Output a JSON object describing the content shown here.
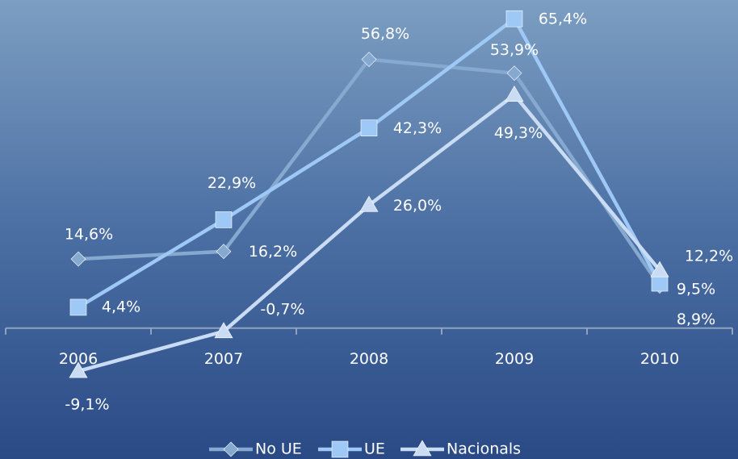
{
  "chart_data": {
    "type": "line",
    "categories": [
      "2006",
      "2007",
      "2008",
      "2009",
      "2010"
    ],
    "ylim": [
      -20,
      68
    ],
    "legend": "bottom",
    "series": [
      {
        "name": "No UE",
        "color": "#86a9d0",
        "marker": "diamond",
        "values": [
          14.6,
          16.2,
          56.8,
          53.9,
          8.9
        ],
        "value_labels": [
          "14,6%",
          "16,2%",
          "56,8%",
          "53,9%",
          "8,9%"
        ]
      },
      {
        "name": "UE",
        "color": "#9ec8f5",
        "marker": "square",
        "values": [
          4.4,
          22.9,
          42.3,
          65.4,
          9.5
        ],
        "value_labels": [
          "4,4%",
          "22,9%",
          "42,3%",
          "65,4%",
          "9,5%"
        ]
      },
      {
        "name": "Nacionals",
        "color": "#c9dcf4",
        "marker": "triangle",
        "values": [
          -9.1,
          -0.7,
          26.0,
          49.3,
          12.2
        ],
        "value_labels": [
          "-9,1%",
          "-0,7%",
          "26,0%",
          "49,3%",
          "12,2%"
        ]
      }
    ]
  }
}
